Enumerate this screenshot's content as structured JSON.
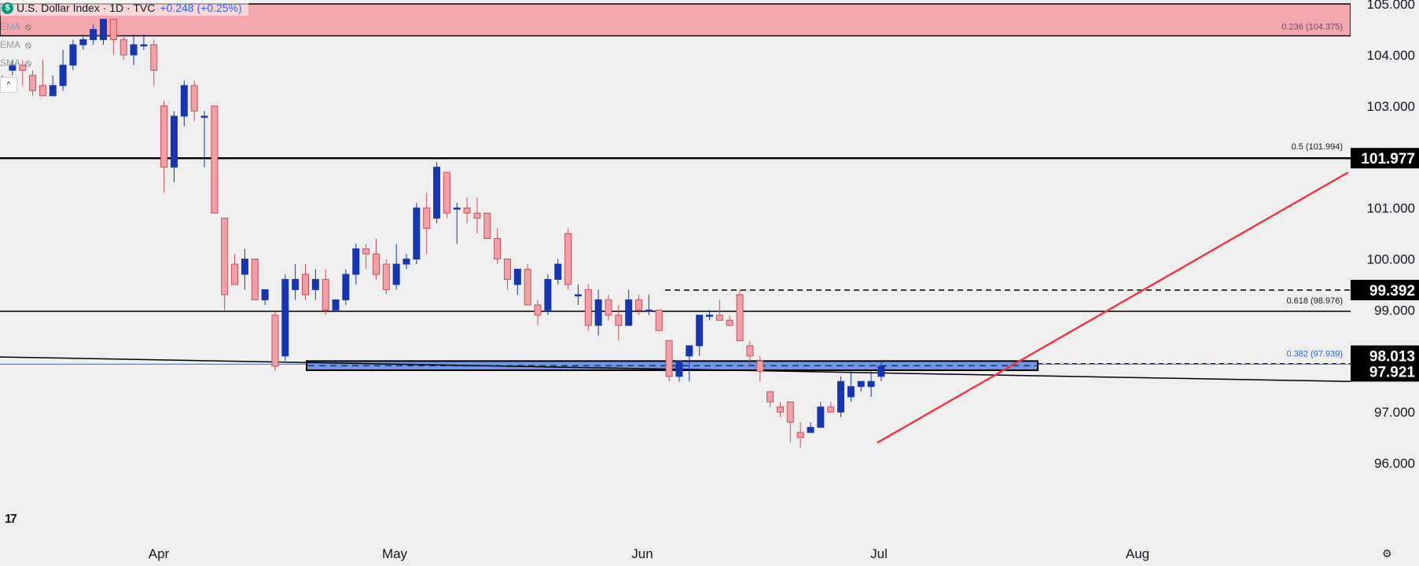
{
  "header": {
    "logo_letter": "$",
    "title": "U.S. Dollar Index · 1D · TVC",
    "change": "+0.248 (+0.25%)"
  },
  "indicators": [
    {
      "label": "EMA",
      "icon": "eye-off-icon"
    },
    {
      "label": "EMA",
      "icon": "eye-off-icon"
    },
    {
      "label": "SMA",
      "icon": "eye-off-icon"
    }
  ],
  "toolbar": {
    "collapse_label": "^",
    "tv_logo": "17",
    "settings_icon": "gear-icon"
  },
  "colors": {
    "background": "#efefef",
    "bull_candle": "#1536b0",
    "bear_candle": "#f2a0a6",
    "bear_border": "#c7505c",
    "resistance_zone": "#f4a8ae",
    "support_zone": "#6e96ea",
    "trendline": "#ee3a48",
    "axis_tag": "#000000"
  },
  "chart_data": {
    "type": "candlestick",
    "title": "U.S. Dollar Index · 1D · TVC",
    "y_range": [
      95.6,
      105.2
    ],
    "x_labels": [
      "Apr",
      "May",
      "Jun",
      "Jul",
      "Aug"
    ],
    "y_ticks": [
      "105.000",
      "104.000",
      "103.000",
      "101.000",
      "100.000",
      "99.000",
      "97.000",
      "96.000"
    ],
    "price_tags": [
      "101.977",
      "99.392",
      "98.013",
      "97.921"
    ],
    "fib_levels": [
      {
        "label": "0.236 (104.375)",
        "value": 104.375
      },
      {
        "label": "0.5 (101.994)",
        "value": 101.994
      },
      {
        "label": "0.618 (98.976)",
        "value": 98.976
      },
      {
        "label": "0.382 (97.939)",
        "value": 97.939
      }
    ],
    "horizontal_lines": [
      {
        "value": 101.977,
        "style": "solid"
      },
      {
        "value": 99.392,
        "style": "dashed"
      },
      {
        "value": 98.976,
        "style": "solid"
      },
      {
        "value": 97.939,
        "style": "dashed"
      }
    ],
    "zones": [
      {
        "name": "resistance",
        "from": 104.375,
        "to": 105.0
      },
      {
        "name": "support",
        "from": 97.82,
        "to": 98.0
      }
    ],
    "candles": [
      {
        "d": "Mar-19",
        "o": 103.4,
        "h": 103.6,
        "l": 103.3,
        "c": 103.5
      },
      {
        "d": "Mar-20",
        "o": 103.7,
        "h": 103.9,
        "l": 103.6,
        "c": 103.8
      },
      {
        "d": "Mar-21",
        "o": 103.8,
        "h": 103.9,
        "l": 103.4,
        "c": 103.7
      },
      {
        "d": "Mar-24",
        "o": 103.6,
        "h": 103.7,
        "l": 103.2,
        "c": 103.3
      },
      {
        "d": "Mar-25",
        "o": 103.4,
        "h": 103.9,
        "l": 103.2,
        "c": 103.2
      },
      {
        "d": "Mar-26",
        "o": 103.2,
        "h": 103.6,
        "l": 103.2,
        "c": 103.4
      },
      {
        "d": "Mar-27",
        "o": 103.4,
        "h": 104.1,
        "l": 103.3,
        "c": 103.8
      },
      {
        "d": "Mar-28",
        "o": 103.8,
        "h": 104.3,
        "l": 103.7,
        "c": 104.2
      },
      {
        "d": "Mar-31",
        "o": 104.2,
        "h": 104.4,
        "l": 104.1,
        "c": 104.3
      },
      {
        "d": "Apr-01",
        "o": 104.3,
        "h": 104.6,
        "l": 104.2,
        "c": 104.5
      },
      {
        "d": "Apr-02",
        "o": 104.3,
        "h": 104.7,
        "l": 104.2,
        "c": 104.7
      },
      {
        "d": "Apr-03",
        "o": 104.7,
        "h": 104.7,
        "l": 104.0,
        "c": 104.3
      },
      {
        "d": "Apr-04",
        "o": 104.3,
        "h": 104.4,
        "l": 103.9,
        "c": 104.0
      },
      {
        "d": "Apr-07",
        "o": 104.0,
        "h": 104.4,
        "l": 103.8,
        "c": 104.2
      },
      {
        "d": "Apr-08",
        "o": 104.2,
        "h": 104.4,
        "l": 104.1,
        "c": 104.2
      },
      {
        "d": "Apr-09",
        "o": 104.2,
        "h": 104.3,
        "l": 103.4,
        "c": 103.7
      },
      {
        "d": "Apr-10",
        "o": 103.0,
        "h": 103.1,
        "l": 101.3,
        "c": 101.8
      },
      {
        "d": "Apr-11",
        "o": 101.8,
        "h": 102.9,
        "l": 101.5,
        "c": 102.8
      },
      {
        "d": "Apr-14",
        "o": 102.8,
        "h": 103.5,
        "l": 102.6,
        "c": 103.4
      },
      {
        "d": "Apr-15",
        "o": 103.4,
        "h": 103.5,
        "l": 102.7,
        "c": 102.9
      },
      {
        "d": "Apr-16",
        "o": 102.8,
        "h": 102.9,
        "l": 101.8,
        "c": 102.8
      },
      {
        "d": "Apr-17",
        "o": 103.0,
        "h": 103.0,
        "l": 100.9,
        "c": 100.9
      },
      {
        "d": "Apr-21",
        "o": 100.8,
        "h": 100.8,
        "l": 99.0,
        "c": 99.3
      },
      {
        "d": "Apr-22",
        "o": 99.9,
        "h": 100.1,
        "l": 99.5,
        "c": 99.5
      },
      {
        "d": "Apr-23",
        "o": 99.7,
        "h": 100.2,
        "l": 99.4,
        "c": 100.0
      },
      {
        "d": "Apr-24",
        "o": 100.0,
        "h": 100.0,
        "l": 99.2,
        "c": 99.2
      },
      {
        "d": "Apr-25",
        "o": 99.2,
        "h": 99.4,
        "l": 99.1,
        "c": 99.4
      },
      {
        "d": "Apr-28",
        "o": 98.9,
        "h": 99.0,
        "l": 97.8,
        "c": 97.9
      },
      {
        "d": "Apr-29",
        "o": 98.1,
        "h": 99.7,
        "l": 98.0,
        "c": 99.6
      },
      {
        "d": "Apr-30",
        "o": 99.4,
        "h": 99.9,
        "l": 99.2,
        "c": 99.6
      },
      {
        "d": "May-01",
        "o": 99.7,
        "h": 99.9,
        "l": 99.2,
        "c": 99.3
      },
      {
        "d": "May-02",
        "o": 99.4,
        "h": 99.8,
        "l": 99.2,
        "c": 99.6
      },
      {
        "d": "May-05",
        "o": 99.6,
        "h": 99.8,
        "l": 98.9,
        "c": 99.0
      },
      {
        "d": "May-06",
        "o": 99.0,
        "h": 99.2,
        "l": 99.0,
        "c": 99.2
      },
      {
        "d": "May-07",
        "o": 99.2,
        "h": 99.8,
        "l": 99.1,
        "c": 99.7
      },
      {
        "d": "May-08",
        "o": 99.7,
        "h": 100.3,
        "l": 99.5,
        "c": 100.2
      },
      {
        "d": "May-09",
        "o": 100.2,
        "h": 100.3,
        "l": 99.8,
        "c": 100.1
      },
      {
        "d": "May-12",
        "o": 100.1,
        "h": 100.4,
        "l": 99.6,
        "c": 99.7
      },
      {
        "d": "May-13",
        "o": 99.9,
        "h": 100.0,
        "l": 99.3,
        "c": 99.4
      },
      {
        "d": "May-14",
        "o": 99.5,
        "h": 100.3,
        "l": 99.4,
        "c": 99.9
      },
      {
        "d": "May-15",
        "o": 99.9,
        "h": 100.1,
        "l": 99.8,
        "c": 100.0
      },
      {
        "d": "May-16",
        "o": 100.0,
        "h": 101.1,
        "l": 99.9,
        "c": 101.0
      },
      {
        "d": "May-19",
        "o": 101.0,
        "h": 101.3,
        "l": 100.1,
        "c": 100.6
      },
      {
        "d": "May-20",
        "o": 100.8,
        "h": 101.9,
        "l": 100.7,
        "c": 101.8
      },
      {
        "d": "May-21",
        "o": 101.7,
        "h": 101.7,
        "l": 100.8,
        "c": 100.9
      },
      {
        "d": "May-22",
        "o": 101.0,
        "h": 101.1,
        "l": 100.3,
        "c": 101.0
      },
      {
        "d": "May-23",
        "o": 101.0,
        "h": 101.2,
        "l": 100.7,
        "c": 100.9
      },
      {
        "d": "May-26",
        "o": 100.9,
        "h": 101.2,
        "l": 100.5,
        "c": 100.8
      },
      {
        "d": "May-27",
        "o": 100.9,
        "h": 100.9,
        "l": 100.4,
        "c": 100.4
      },
      {
        "d": "May-28",
        "o": 100.4,
        "h": 100.6,
        "l": 99.9,
        "c": 100.0
      },
      {
        "d": "May-29",
        "o": 100.0,
        "h": 100.0,
        "l": 99.4,
        "c": 99.6
      },
      {
        "d": "May-30",
        "o": 99.5,
        "h": 99.8,
        "l": 99.3,
        "c": 99.8
      },
      {
        "d": "Jun-02",
        "o": 99.8,
        "h": 99.9,
        "l": 99.1,
        "c": 99.1
      },
      {
        "d": "Jun-03",
        "o": 99.1,
        "h": 99.2,
        "l": 98.7,
        "c": 98.9
      },
      {
        "d": "Jun-04",
        "o": 99.0,
        "h": 99.7,
        "l": 98.9,
        "c": 99.6
      },
      {
        "d": "Jun-05",
        "o": 99.6,
        "h": 100.0,
        "l": 99.5,
        "c": 99.9
      },
      {
        "d": "Jun-06",
        "o": 100.5,
        "h": 100.6,
        "l": 99.4,
        "c": 99.5
      },
      {
        "d": "Jun-09",
        "o": 99.3,
        "h": 99.5,
        "l": 99.1,
        "c": 99.3
      },
      {
        "d": "Jun-10",
        "o": 99.4,
        "h": 99.5,
        "l": 98.6,
        "c": 98.7
      },
      {
        "d": "Jun-11",
        "o": 98.7,
        "h": 99.4,
        "l": 98.5,
        "c": 99.2
      },
      {
        "d": "Jun-12",
        "o": 99.2,
        "h": 99.3,
        "l": 98.8,
        "c": 98.9
      },
      {
        "d": "Jun-13",
        "o": 98.9,
        "h": 99.1,
        "l": 98.4,
        "c": 98.7
      },
      {
        "d": "Jun-16",
        "o": 98.7,
        "h": 99.4,
        "l": 98.7,
        "c": 99.2
      },
      {
        "d": "Jun-17",
        "o": 99.2,
        "h": 99.3,
        "l": 98.9,
        "c": 99.0
      },
      {
        "d": "Jun-18",
        "o": 99.0,
        "h": 99.3,
        "l": 98.9,
        "c": 99.0
      },
      {
        "d": "Jun-19",
        "o": 99.0,
        "h": 99.0,
        "l": 98.6,
        "c": 98.6
      },
      {
        "d": "Jun-20",
        "o": 98.4,
        "h": 98.4,
        "l": 97.6,
        "c": 97.7
      },
      {
        "d": "Jun-23",
        "o": 97.7,
        "h": 98.0,
        "l": 97.6,
        "c": 98.0
      },
      {
        "d": "Jun-24",
        "o": 98.1,
        "h": 98.3,
        "l": 97.6,
        "c": 98.3
      },
      {
        "d": "Jun-25",
        "o": 98.3,
        "h": 98.9,
        "l": 98.1,
        "c": 98.9
      },
      {
        "d": "Jun-26",
        "o": 98.9,
        "h": 99.0,
        "l": 98.8,
        "c": 98.9
      },
      {
        "d": "Jun-27",
        "o": 98.9,
        "h": 99.2,
        "l": 98.8,
        "c": 98.8
      },
      {
        "d": "Jun-30",
        "o": 98.8,
        "h": 98.9,
        "l": 98.7,
        "c": 98.7
      },
      {
        "d": "Jul-01",
        "o": 99.3,
        "h": 99.4,
        "l": 98.4,
        "c": 98.4
      },
      {
        "d": "Jul-02",
        "o": 98.3,
        "h": 98.4,
        "l": 97.9,
        "c": 98.1
      },
      {
        "d": "Jul-03",
        "o": 98.0,
        "h": 98.1,
        "l": 97.6,
        "c": 97.8
      },
      {
        "d": "Jul-04",
        "o": 97.4,
        "h": 97.4,
        "l": 97.1,
        "c": 97.2
      },
      {
        "d": "Jul-07",
        "o": 97.1,
        "h": 97.2,
        "l": 96.9,
        "c": 97.0
      },
      {
        "d": "Jul-08",
        "o": 97.2,
        "h": 97.2,
        "l": 96.4,
        "c": 96.8
      },
      {
        "d": "Jul-09",
        "o": 96.6,
        "h": 96.8,
        "l": 96.3,
        "c": 96.5
      },
      {
        "d": "Jul-10",
        "o": 96.6,
        "h": 96.8,
        "l": 96.6,
        "c": 96.7
      },
      {
        "d": "Jul-11",
        "o": 96.7,
        "h": 97.2,
        "l": 96.7,
        "c": 97.1
      },
      {
        "d": "Jul-14",
        "o": 97.1,
        "h": 97.2,
        "l": 97.0,
        "c": 97.0
      },
      {
        "d": "Jul-15",
        "o": 97.0,
        "h": 97.7,
        "l": 96.9,
        "c": 97.6
      },
      {
        "d": "Jul-16",
        "o": 97.3,
        "h": 97.8,
        "l": 97.2,
        "c": 97.5
      },
      {
        "d": "Jul-17",
        "o": 97.5,
        "h": 97.6,
        "l": 97.4,
        "c": 97.6
      },
      {
        "d": "Jul-18",
        "o": 97.5,
        "h": 97.8,
        "l": 97.3,
        "c": 97.6
      },
      {
        "d": "Jul-21",
        "o": 97.7,
        "h": 98.0,
        "l": 97.6,
        "c": 97.9
      }
    ]
  }
}
